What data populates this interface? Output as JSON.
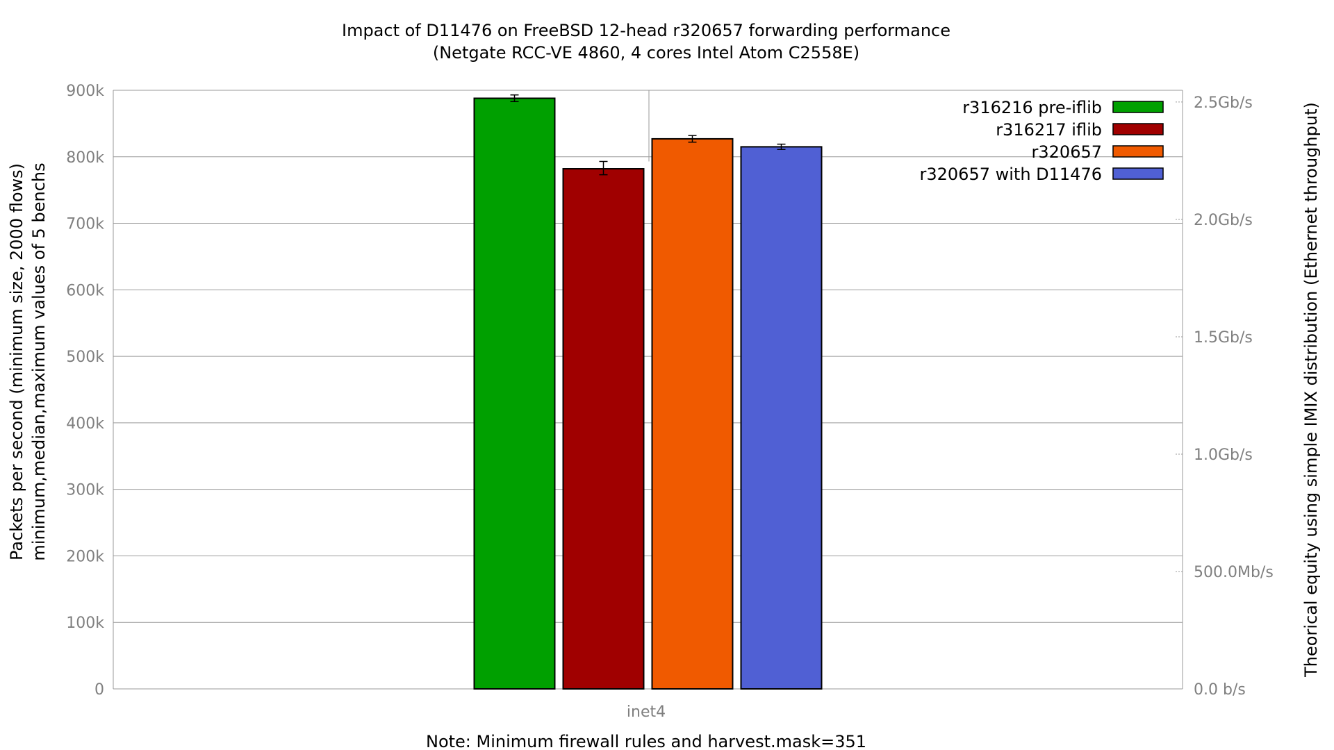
{
  "chart_data": {
    "type": "bar",
    "title": "Impact of D11476 on FreeBSD 12-head r320657 forwarding performance",
    "subtitle": "(Netgate RCC-VE 4860, 4 cores Intel Atom C2558E)",
    "ylabel": [
      "Packets per second (minimum size, 2000 flows)",
      "minimum,median,maximum values of 5 benchs"
    ],
    "y2label": "Theorical equity using simple IMIX distribution (Ethernet throughput)",
    "note": "Note: Minimum firewall rules and harvest.mask=351",
    "categories": [
      "inet4"
    ],
    "ylim": [
      0,
      900000
    ],
    "y_ticks": [
      0,
      100000,
      200000,
      300000,
      400000,
      500000,
      600000,
      700000,
      800000,
      900000
    ],
    "y_tick_labels": [
      "0",
      "100k",
      "200k",
      "300k",
      "400k",
      "500k",
      "600k",
      "700k",
      "800k",
      "900k"
    ],
    "y2_ticks": [
      {
        "value": 0,
        "label": "0.0 b/s"
      },
      {
        "value": 500000000,
        "label": "500.0Mb/s"
      },
      {
        "value": 1000000000,
        "label": "1.0Gb/s"
      },
      {
        "value": 1500000000,
        "label": "1.5Gb/s"
      },
      {
        "value": 2000000000,
        "label": "2.0Gb/s"
      },
      {
        "value": 2500000000,
        "label": "2.5Gb/s"
      }
    ],
    "y2lim": [
      0,
      2550000000
    ],
    "grid": true,
    "legend_position": "top-right",
    "series": [
      {
        "name": "r316216 pre-iflib",
        "color": "#00a000",
        "values": [
          888000
        ],
        "min": [
          883000
        ],
        "max": [
          893000
        ]
      },
      {
        "name": "r316217 iflib",
        "color": "#a00000",
        "values": [
          782000
        ],
        "min": [
          773000
        ],
        "max": [
          793000
        ]
      },
      {
        "name": "r320657",
        "color": "#f05a00",
        "values": [
          827000
        ],
        "min": [
          822000
        ],
        "max": [
          832000
        ]
      },
      {
        "name": "r320657 with D11476",
        "color": "#5060d4",
        "values": [
          815000
        ],
        "min": [
          811000
        ],
        "max": [
          819000
        ]
      }
    ]
  }
}
